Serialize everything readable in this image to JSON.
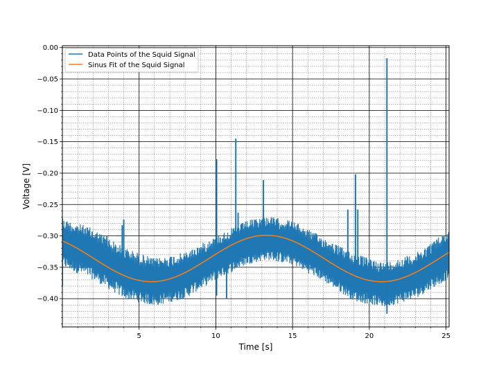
{
  "chart_data": {
    "type": "line",
    "title": "",
    "xlabel": "Time [s]",
    "ylabel": "Voltage [V]",
    "xlim": [
      0.0,
      25.2
    ],
    "ylim": [
      -0.445,
      0.003
    ],
    "xticks": [
      5,
      10,
      15,
      20,
      25
    ],
    "xtick_labels": [
      "5",
      "10",
      "15",
      "20",
      "25"
    ],
    "yticks": [
      0.0,
      -0.05,
      -0.1,
      -0.15,
      -0.2,
      -0.25,
      -0.3,
      -0.35,
      -0.4
    ],
    "ytick_labels": [
      "0.00",
      "−0.05",
      "−0.10",
      "−0.15",
      "−0.20",
      "−0.25",
      "−0.30",
      "−0.35",
      "−0.40"
    ],
    "grid": "major and minor",
    "legend_position": "upper-left",
    "series": [
      {
        "name": "Data Points of the Squid Signal",
        "color": "#1f77b4",
        "kind": "noisy-band",
        "band_upper": [
          [
            0.0,
            -0.272
          ],
          [
            2.0,
            -0.288
          ],
          [
            4.0,
            -0.318
          ],
          [
            6.0,
            -0.336
          ],
          [
            8.0,
            -0.326
          ],
          [
            10.0,
            -0.3
          ],
          [
            12.0,
            -0.276
          ],
          [
            13.3,
            -0.268
          ],
          [
            15.0,
            -0.276
          ],
          [
            17.0,
            -0.302
          ],
          [
            19.0,
            -0.328
          ],
          [
            21.0,
            -0.342
          ],
          [
            23.0,
            -0.328
          ],
          [
            25.2,
            -0.29
          ]
        ],
        "band_lower": [
          [
            0.0,
            -0.35
          ],
          [
            2.0,
            -0.37
          ],
          [
            4.0,
            -0.4
          ],
          [
            6.0,
            -0.412
          ],
          [
            8.0,
            -0.4
          ],
          [
            10.0,
            -0.37
          ],
          [
            12.0,
            -0.346
          ],
          [
            13.3,
            -0.338
          ],
          [
            15.0,
            -0.346
          ],
          [
            17.0,
            -0.372
          ],
          [
            19.0,
            -0.404
          ],
          [
            21.0,
            -0.414
          ],
          [
            23.0,
            -0.4
          ],
          [
            25.2,
            -0.368
          ]
        ],
        "spikes": [
          {
            "x": 0.0,
            "ymin": -0.38,
            "ymax": -0.272
          },
          {
            "x": 2.9,
            "ymin": -0.36,
            "ymax": -0.3
          },
          {
            "x": 3.9,
            "ymin": -0.38,
            "ymax": -0.283
          },
          {
            "x": 4.0,
            "ymin": -0.36,
            "ymax": -0.274
          },
          {
            "x": 10.05,
            "ymin": -0.395,
            "ymax": -0.178
          },
          {
            "x": 10.7,
            "ymin": -0.4,
            "ymax": -0.34
          },
          {
            "x": 11.3,
            "ymin": -0.34,
            "ymax": -0.145
          },
          {
            "x": 11.45,
            "ymin": -0.34,
            "ymax": -0.263
          },
          {
            "x": 13.1,
            "ymin": -0.33,
            "ymax": -0.211
          },
          {
            "x": 18.6,
            "ymin": -0.38,
            "ymax": -0.258
          },
          {
            "x": 19.1,
            "ymin": -0.38,
            "ymax": -0.202
          },
          {
            "x": 19.25,
            "ymin": -0.38,
            "ymax": -0.258
          },
          {
            "x": 21.15,
            "ymin": -0.424,
            "ymax": -0.017
          }
        ]
      },
      {
        "name": "Sinus Fit of the Squid Signal",
        "color": "#ff7f0e",
        "kind": "sine",
        "offset": -0.336,
        "amplitude": 0.037,
        "period": 15.0,
        "peak_x": 13.3
      }
    ]
  }
}
